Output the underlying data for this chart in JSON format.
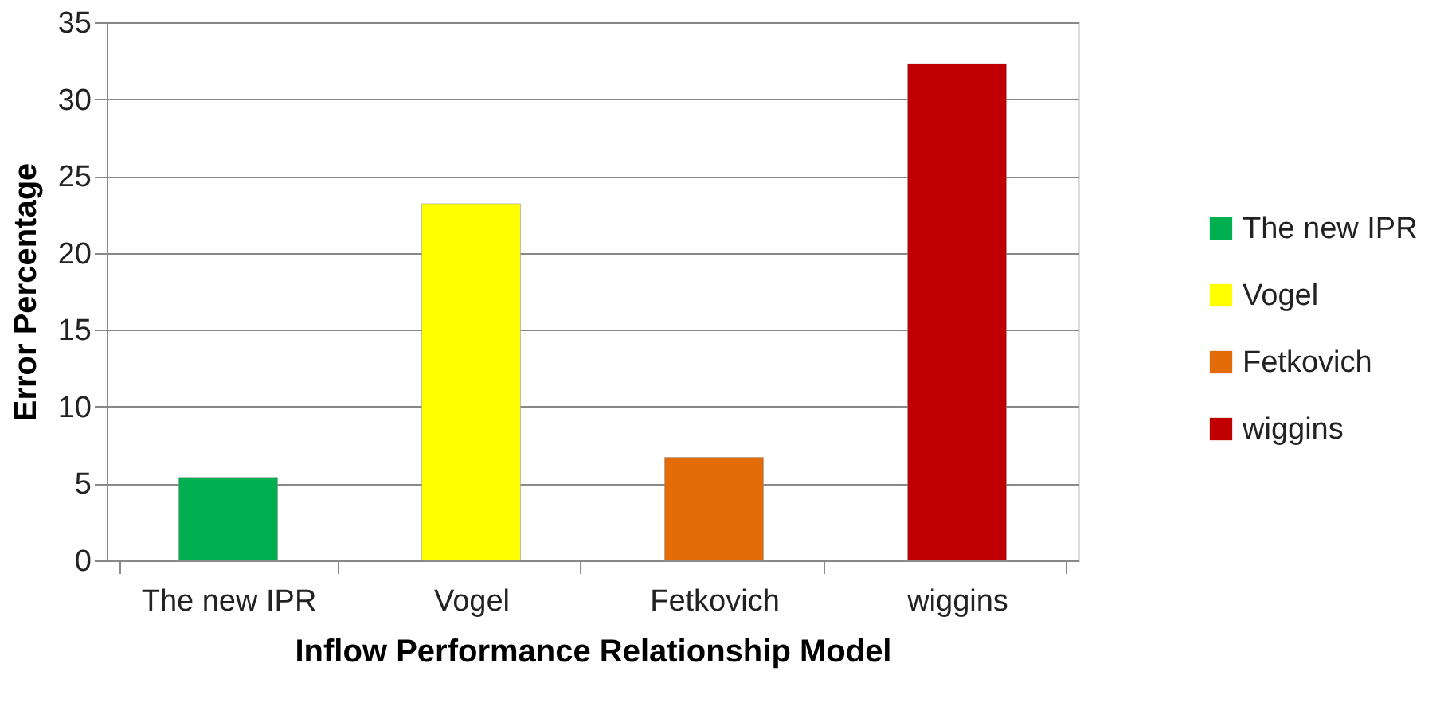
{
  "chart_data": {
    "type": "bar",
    "xlabel": "Inflow Performance Relationship Model",
    "ylabel": "Error Percentage",
    "categories": [
      "The new IPR",
      "Vogel",
      "Fetkovich",
      "wiggins"
    ],
    "series": [
      {
        "name": "The new IPR",
        "color": "#00b050",
        "values": [
          5.4,
          null,
          null,
          null
        ]
      },
      {
        "name": "Vogel",
        "color": "#ffff00",
        "values": [
          null,
          23.2,
          null,
          null
        ]
      },
      {
        "name": "Fetkovich",
        "color": "#e36c09",
        "values": [
          null,
          null,
          6.7,
          null
        ]
      },
      {
        "name": "wiggins",
        "color": "#c00000",
        "values": [
          null,
          null,
          null,
          32.3
        ]
      }
    ],
    "ylim": [
      0,
      35
    ],
    "yticks": [
      0,
      5,
      10,
      15,
      20,
      25,
      30,
      35
    ],
    "grid": "y",
    "legend": "right"
  }
}
